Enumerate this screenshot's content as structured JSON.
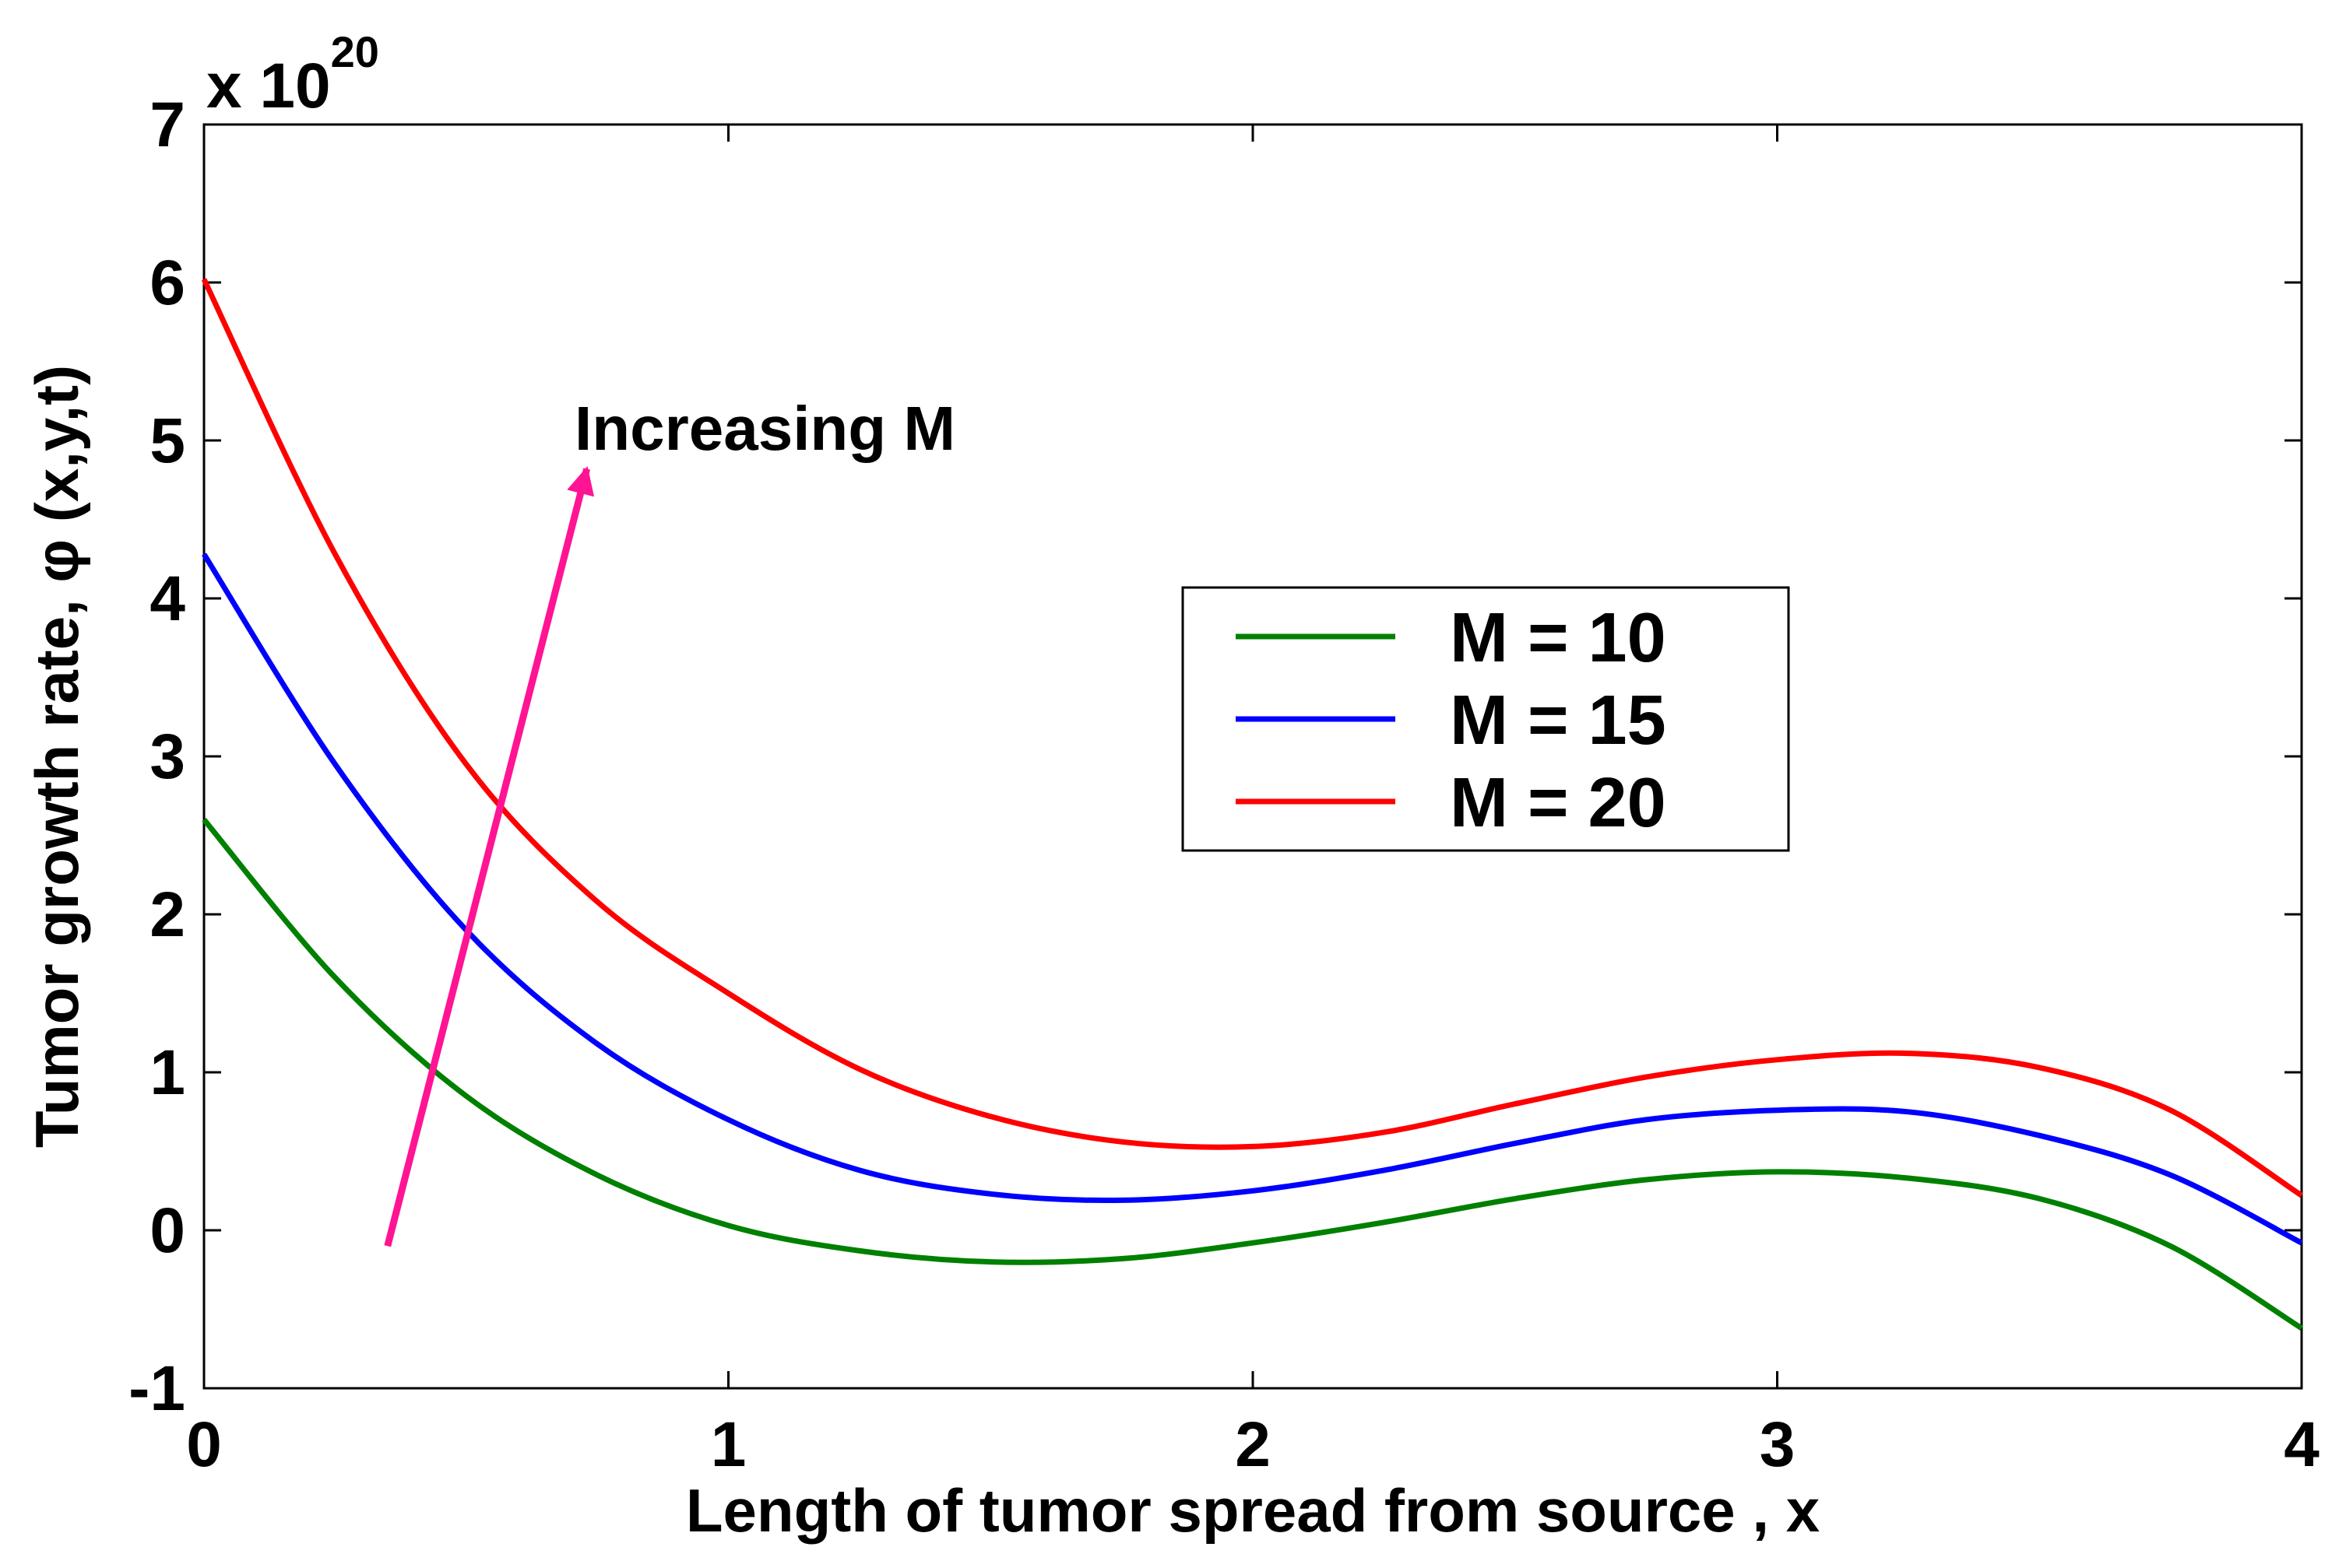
{
  "chart_data": {
    "type": "line",
    "title": "",
    "xlabel": "Length of tumor spread from source , x",
    "ylabel": "Tumor growth rate, φ (x,y,t)",
    "y_multiplier": {
      "base": "x 10",
      "exponent": "20"
    },
    "xlim": [
      0,
      4
    ],
    "ylim": [
      -1,
      7
    ],
    "xticks": [
      0,
      1,
      2,
      3,
      4
    ],
    "yticks": [
      -1,
      0,
      1,
      2,
      3,
      4,
      5,
      6,
      7
    ],
    "grid": false,
    "legend_position": "center-right",
    "x": [
      0,
      0.25,
      0.5,
      0.75,
      1.0,
      1.25,
      1.5,
      1.75,
      2.0,
      2.25,
      2.5,
      2.75,
      3.0,
      3.25,
      3.5,
      3.75,
      4.0
    ],
    "series": [
      {
        "name": "M = 10",
        "color": "#008000",
        "values": [
          2.6,
          1.6,
          0.85,
          0.35,
          0.03,
          -0.13,
          -0.2,
          -0.18,
          -0.08,
          0.05,
          0.2,
          0.32,
          0.37,
          0.33,
          0.2,
          -0.1,
          -0.62
        ]
      },
      {
        "name": "M = 15",
        "color": "#0000ff",
        "values": [
          4.28,
          2.95,
          1.9,
          1.18,
          0.7,
          0.38,
          0.23,
          0.19,
          0.25,
          0.38,
          0.55,
          0.7,
          0.76,
          0.75,
          0.6,
          0.35,
          -0.08
        ]
      },
      {
        "name": "M = 20",
        "color": "#ff0000",
        "values": [
          6.02,
          4.28,
          2.95,
          2.08,
          1.5,
          1.02,
          0.72,
          0.56,
          0.53,
          0.62,
          0.8,
          0.97,
          1.08,
          1.12,
          1.03,
          0.76,
          0.22
        ]
      }
    ],
    "annotation": {
      "text": "Increasing M",
      "color": "#ff1493",
      "arrow_from": [
        0.35,
        -0.1
      ],
      "arrow_to": [
        0.73,
        4.82
      ]
    }
  }
}
